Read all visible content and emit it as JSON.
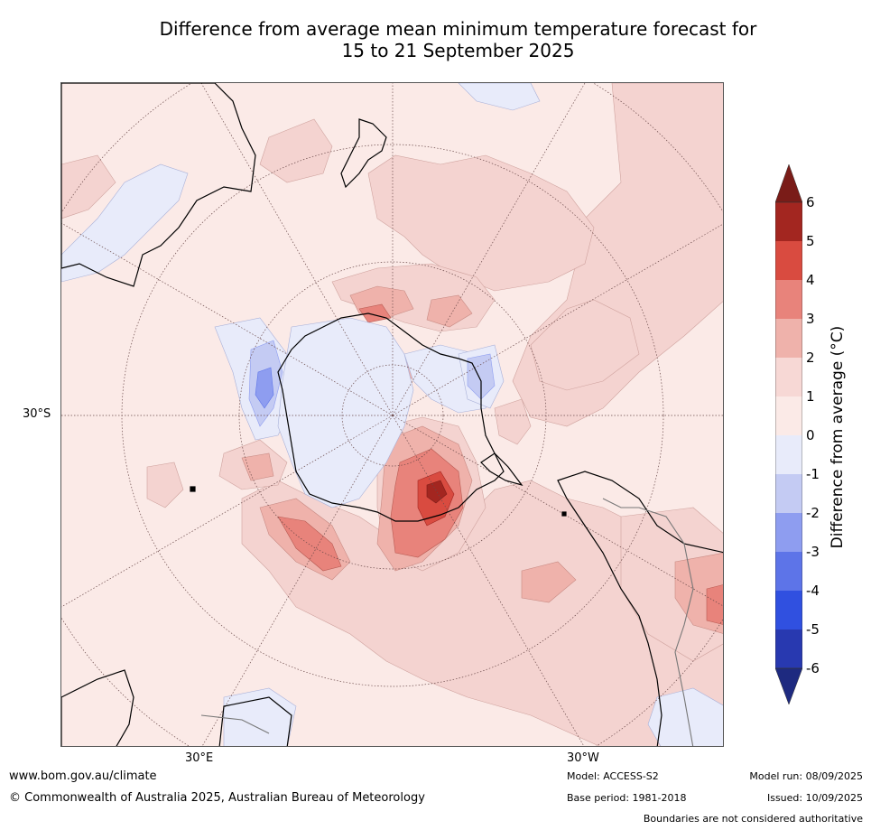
{
  "title": {
    "line1": "Difference from average mean minimum temperature forecast for",
    "line2": "15 to 21 September 2025"
  },
  "axis_labels": {
    "lat_30s": "30°S",
    "lon_30e": "30°E",
    "lon_30w": "30°W"
  },
  "colorbar": {
    "title": "Difference from average (°C)",
    "ticks": [
      "6",
      "5",
      "4",
      "3",
      "2",
      "1",
      "0",
      "-1",
      "-2",
      "-3",
      "-4",
      "-5",
      "-6"
    ],
    "colors": [
      "#7a1c18",
      "#a32620",
      "#d94b40",
      "#e8837b",
      "#efb2ab",
      "#f7d8d5",
      "#fbeae7",
      "#e8ebfa",
      "#c4cbf3",
      "#8e9df0",
      "#5d74e8",
      "#3050e0",
      "#2839b0",
      "#1e2a80"
    ]
  },
  "footer": {
    "url": "www.bom.gov.au/climate",
    "copyright": "© Commonwealth of Australia 2025, Australian Bureau of Meteorology",
    "model": "Model: ACCESS-S2",
    "base_period": "Base period: 1981-2018",
    "model_run": "Model run: 08/09/2025",
    "issued": "Issued: 10/09/2025",
    "disclaimer": "Boundaries are not considered authoritative"
  }
}
